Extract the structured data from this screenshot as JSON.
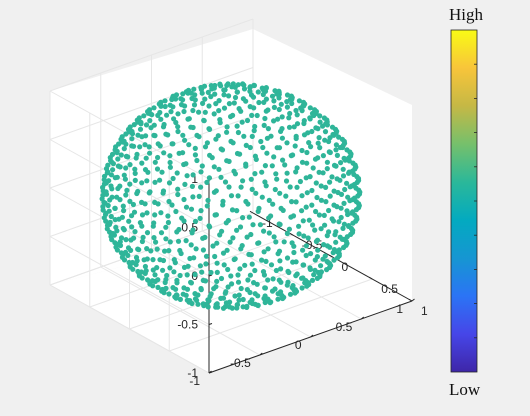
{
  "chart_data": {
    "type": "scatter3d",
    "title": "",
    "xlabel": "",
    "ylabel": "",
    "zlabel": "",
    "xlim": [
      -1,
      1
    ],
    "ylim": [
      -1,
      1
    ],
    "zlim": [
      -1,
      1
    ],
    "grid": true,
    "view": "default 3-D (azimuth -37.5, elevation 30)",
    "x_ticks": [
      "-1",
      "-0.5",
      "0",
      "0.5",
      "1"
    ],
    "y_ticks": [
      "-1",
      "-0.5",
      "0",
      "0.5",
      "1"
    ],
    "z_ticks": [
      "-1",
      "-0.5",
      "0",
      "0.5",
      "1"
    ],
    "series": [
      {
        "description": "points distributed on the surface of the unit sphere x^2+y^2+z^2=1",
        "point_count": 1000,
        "marker": "filled circle",
        "color": "#2fb599"
      }
    ],
    "colorbar": {
      "top_label": "High",
      "bottom_label": "Low",
      "colormap": [
        "#3e26a8",
        "#4646e8",
        "#2b74f5",
        "#1696d2",
        "#03aac0",
        "#2bb899",
        "#76c06b",
        "#c5b845",
        "#f8c53a",
        "#f9fb15"
      ]
    }
  },
  "colors": {
    "background": "#f0f0f0",
    "axes_background": "#ffffff",
    "grid": "#e6e6e6",
    "axis_line": "#262626"
  }
}
